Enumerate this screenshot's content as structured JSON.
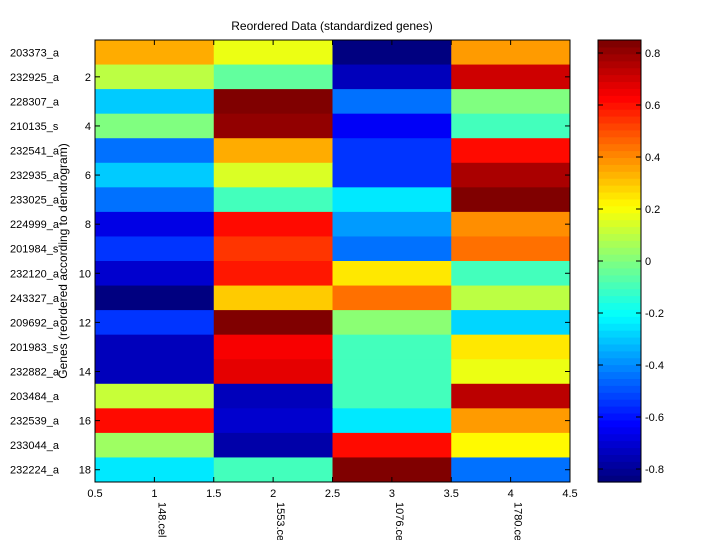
{
  "chart_data": {
    "type": "heatmap",
    "title": "Reordered Data (standardized genes)",
    "ylabel": "Genes (reordered according to dendrogram)",
    "xlabel": "",
    "xlim": [
      0.5,
      4.5
    ],
    "ylim": [
      0.5,
      18.5
    ],
    "x_ticks": [
      0.5,
      1,
      1.5,
      2,
      2.5,
      3,
      3.5,
      4,
      4.5
    ],
    "x_tick_labels": [
      "0.5",
      "1",
      "1.5",
      "2",
      "2.5",
      "3",
      "3.5",
      "4",
      "4.5"
    ],
    "y_ticks": [
      2,
      4,
      6,
      8,
      10,
      12,
      14,
      16,
      18
    ],
    "y_tick_labels": [
      "2",
      "4",
      "6",
      "8",
      "10",
      "12",
      "14",
      "16",
      "18"
    ],
    "columns": [
      "148.cel",
      "1553.cel",
      "1076.cel",
      "1780.cel"
    ],
    "rows": [
      "203373_a",
      "232925_a",
      "228307_a",
      "210135_s",
      "232541_a",
      "232935_a",
      "233025_a",
      "224999_a",
      "201984_s",
      "232120_a",
      "243327_a",
      "209692_a",
      "201983_s",
      "232882_a",
      "203484_a",
      "232539_a",
      "233044_a",
      "232224_a"
    ],
    "values": [
      [
        0.35,
        0.18,
        -0.85,
        0.38
      ],
      [
        0.1,
        -0.05,
        -0.75,
        0.72
      ],
      [
        -0.3,
        0.85,
        -0.45,
        0.0
      ],
      [
        0.0,
        0.82,
        -0.65,
        -0.1
      ],
      [
        -0.45,
        0.35,
        -0.55,
        0.62
      ],
      [
        -0.3,
        0.15,
        -0.55,
        0.78
      ],
      [
        -0.45,
        -0.1,
        -0.25,
        0.85
      ],
      [
        -0.68,
        0.62,
        -0.38,
        0.4
      ],
      [
        -0.55,
        0.55,
        -0.45,
        0.45
      ],
      [
        -0.72,
        0.6,
        0.25,
        -0.1
      ],
      [
        -0.85,
        0.3,
        0.45,
        0.1
      ],
      [
        -0.55,
        0.85,
        0.02,
        -0.28
      ],
      [
        -0.75,
        0.65,
        -0.1,
        0.25
      ],
      [
        -0.75,
        0.68,
        -0.1,
        0.18
      ],
      [
        0.12,
        -0.75,
        -0.1,
        0.75
      ],
      [
        0.62,
        -0.72,
        -0.25,
        0.38
      ],
      [
        0.05,
        -0.78,
        0.62,
        0.22
      ],
      [
        -0.25,
        -0.1,
        0.85,
        -0.45
      ]
    ],
    "colorbar": {
      "colormap": "jet",
      "range": [
        -0.85,
        0.85
      ],
      "ticks": [
        -0.8,
        -0.6,
        -0.4,
        -0.2,
        0,
        0.2,
        0.4,
        0.6,
        0.8
      ],
      "tick_labels": [
        "-0.8",
        "-0.6",
        "-0.4",
        "-0.2",
        "0",
        "0.2",
        "0.4",
        "0.6",
        "0.8"
      ]
    }
  }
}
